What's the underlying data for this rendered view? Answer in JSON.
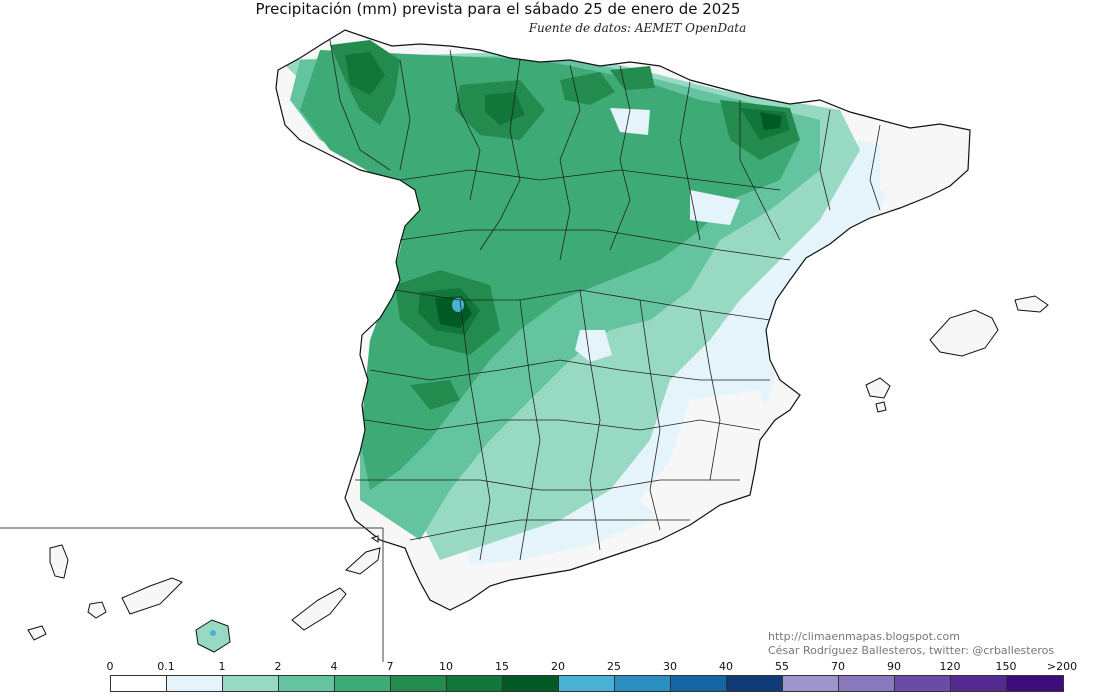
{
  "title": "Precipitación (mm) prevista para el sábado 25 de enero de 2025",
  "source": "Fuente de datos: AEMET OpenData",
  "credits": {
    "url": "http://climaenmapas.blogspot.com",
    "author": "César Rodríguez Ballesteros, twitter: @crballesteros"
  },
  "legend": {
    "labels": [
      "0",
      "0.1",
      "1",
      "2",
      "4",
      "7",
      "10",
      "15",
      "20",
      "25",
      "30",
      "40",
      "55",
      "70",
      "90",
      "120",
      "150",
      ">200"
    ],
    "colors": [
      "#ffffff",
      "#e4f4fa",
      "#98d9c4",
      "#64c4a0",
      "#3eab76",
      "#238b4e",
      "#10763a",
      "#005a26",
      "#47b2d6",
      "#2a8fc0",
      "#1566a6",
      "#103a78",
      "#9d96cc",
      "#8a78be",
      "#6c4aa8",
      "#542b92",
      "#3e0c7c"
    ]
  },
  "colors": {
    "land_dry": "#f7f7f7",
    "land_very_light": "#e4f4fa",
    "land_light": "#98d9c4",
    "land_mid": "#64c4a0",
    "land_medium": "#3eab76",
    "land_dark": "#238b4e",
    "land_darker": "#10763a",
    "land_darkest": "#005a26",
    "spot_blue": "#47b2d6",
    "border": "#111111"
  }
}
